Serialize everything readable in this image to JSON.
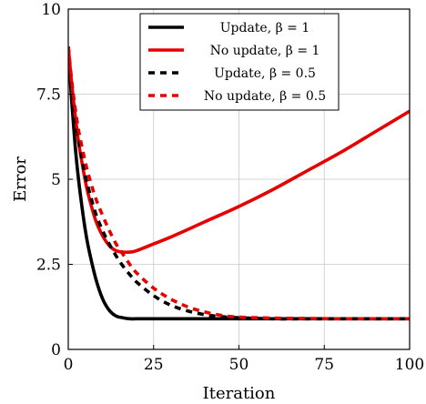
{
  "chart_data": {
    "type": "line",
    "xlabel": "Iteration",
    "ylabel": "Error",
    "xlim": [
      0,
      100
    ],
    "ylim": [
      0,
      10
    ],
    "xticks": [
      "0",
      "25",
      "50",
      "75",
      "100"
    ],
    "yticks": [
      "0",
      "2.5",
      "5",
      "7.5",
      "10"
    ],
    "grid": true,
    "legend_position": "top-center",
    "series": [
      {
        "name": "Update, β = 1",
        "color": "#000000",
        "style": "solid",
        "x": [
          0,
          1,
          2,
          3,
          4,
          5,
          6,
          8,
          10,
          12,
          14,
          16,
          18,
          20,
          25,
          30,
          40,
          50,
          60,
          70,
          80,
          90,
          100
        ],
        "y": [
          8.9,
          7.3,
          6.0,
          5.0,
          4.2,
          3.5,
          2.95,
          2.1,
          1.5,
          1.15,
          0.98,
          0.93,
          0.9,
          0.9,
          0.9,
          0.9,
          0.9,
          0.9,
          0.9,
          0.9,
          0.9,
          0.9,
          0.9
        ]
      },
      {
        "name": "No update, β = 1",
        "color": "#e60000",
        "style": "solid",
        "x": [
          0,
          1,
          2,
          3,
          4,
          5,
          6,
          8,
          10,
          12,
          14,
          16,
          18,
          20,
          25,
          30,
          40,
          50,
          60,
          70,
          80,
          90,
          100
        ],
        "y": [
          8.9,
          7.8,
          6.9,
          6.1,
          5.5,
          4.95,
          4.5,
          3.8,
          3.35,
          3.05,
          2.9,
          2.86,
          2.86,
          2.9,
          3.1,
          3.3,
          3.75,
          4.2,
          4.7,
          5.25,
          5.8,
          6.4,
          7.0
        ]
      },
      {
        "name": "Update, β = 0.5",
        "color": "#000000",
        "style": "dashed",
        "x": [
          0,
          1,
          2,
          3,
          4,
          5,
          6,
          8,
          10,
          12,
          14,
          16,
          18,
          20,
          25,
          30,
          35,
          40,
          45,
          50,
          60,
          70,
          80,
          90,
          100
        ],
        "y": [
          8.9,
          7.8,
          6.9,
          6.2,
          5.6,
          5.1,
          4.7,
          4.0,
          3.5,
          3.1,
          2.75,
          2.45,
          2.2,
          1.98,
          1.58,
          1.3,
          1.13,
          1.02,
          0.96,
          0.93,
          0.9,
          0.9,
          0.9,
          0.9,
          0.9
        ]
      },
      {
        "name": "No update, β = 0.5",
        "color": "#e60000",
        "style": "dashed",
        "x": [
          0,
          1,
          2,
          3,
          4,
          5,
          6,
          8,
          10,
          12,
          14,
          16,
          18,
          20,
          25,
          30,
          35,
          40,
          45,
          50,
          60,
          70,
          80,
          90,
          100
        ],
        "y": [
          8.9,
          7.9,
          7.1,
          6.45,
          5.95,
          5.5,
          5.1,
          4.45,
          3.95,
          3.5,
          3.1,
          2.8,
          2.5,
          2.25,
          1.8,
          1.48,
          1.25,
          1.1,
          1.0,
          0.95,
          0.92,
          0.91,
          0.9,
          0.9,
          0.9
        ]
      }
    ]
  }
}
